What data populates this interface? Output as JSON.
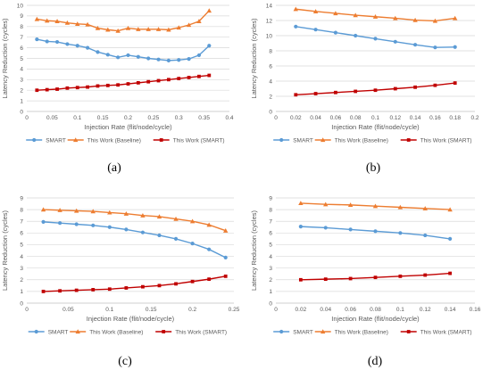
{
  "chart_data": [
    {
      "panel": "(a)",
      "type": "line",
      "xlabel": "Injection Rate (flit/node/cycle)",
      "ylabel": "Latency Reduction (cycles)",
      "xlim": [
        0,
        0.4
      ],
      "ylim": [
        0,
        10
      ],
      "xticks": [
        "0",
        "0.05",
        "0.1",
        "0.15",
        "0.2",
        "0.25",
        "0.3",
        "0.35",
        "0.4"
      ],
      "yticks": [
        "0",
        "1",
        "2",
        "3",
        "4",
        "5",
        "6",
        "7",
        "8",
        "9",
        "10"
      ],
      "grid": true,
      "legend_position": "bottom",
      "series": [
        {
          "name": "SMART",
          "color": "#5b9bd5",
          "marker": "circle",
          "x": [
            0.02,
            0.04,
            0.06,
            0.08,
            0.1,
            0.12,
            0.14,
            0.16,
            0.18,
            0.2,
            0.22,
            0.24,
            0.26,
            0.28,
            0.3,
            0.32,
            0.34,
            0.36
          ],
          "y": [
            6.8,
            6.6,
            6.55,
            6.35,
            6.2,
            6.0,
            5.6,
            5.35,
            5.1,
            5.3,
            5.15,
            5.0,
            4.9,
            4.8,
            4.85,
            4.95,
            5.3,
            6.2
          ]
        },
        {
          "name": "This Work (Baseline)",
          "color": "#ed7d31",
          "marker": "triangle",
          "x": [
            0.02,
            0.04,
            0.06,
            0.08,
            0.1,
            0.12,
            0.14,
            0.16,
            0.18,
            0.2,
            0.22,
            0.24,
            0.26,
            0.28,
            0.3,
            0.32,
            0.34,
            0.36
          ],
          "y": [
            8.7,
            8.55,
            8.5,
            8.35,
            8.25,
            8.2,
            7.85,
            7.7,
            7.6,
            7.85,
            7.75,
            7.75,
            7.75,
            7.7,
            7.9,
            8.15,
            8.5,
            9.5
          ]
        },
        {
          "name": "This Work (SMART)",
          "color": "#c00000",
          "marker": "square",
          "x": [
            0.02,
            0.04,
            0.06,
            0.08,
            0.1,
            0.12,
            0.14,
            0.16,
            0.18,
            0.2,
            0.22,
            0.24,
            0.26,
            0.28,
            0.3,
            0.32,
            0.34,
            0.36
          ],
          "y": [
            2.0,
            2.05,
            2.1,
            2.2,
            2.25,
            2.3,
            2.4,
            2.45,
            2.5,
            2.6,
            2.7,
            2.8,
            2.9,
            3.0,
            3.1,
            3.2,
            3.3,
            3.4
          ]
        }
      ]
    },
    {
      "panel": "(b)",
      "type": "line",
      "xlabel": "Injection Rate (flit/node/cycle)",
      "ylabel": "Latency Reduction (cycles)",
      "xlim": [
        0,
        0.2
      ],
      "ylim": [
        0,
        14
      ],
      "xticks": [
        "0",
        "0.02",
        "0.04",
        "0.06",
        "0.08",
        "0.1",
        "0.12",
        "0.14",
        "0.16",
        "0.18",
        "0.2"
      ],
      "yticks": [
        "0",
        "2",
        "4",
        "6",
        "8",
        "10",
        "12",
        "14"
      ],
      "grid": true,
      "legend_position": "bottom",
      "series": [
        {
          "name": "SMART",
          "color": "#5b9bd5",
          "marker": "circle",
          "x": [
            0.02,
            0.04,
            0.06,
            0.08,
            0.1,
            0.12,
            0.14,
            0.16,
            0.18
          ],
          "y": [
            11.2,
            10.8,
            10.4,
            10.0,
            9.6,
            9.2,
            8.8,
            8.45,
            8.5
          ]
        },
        {
          "name": "This Work (Baseline)",
          "color": "#ed7d31",
          "marker": "triangle",
          "x": [
            0.02,
            0.04,
            0.06,
            0.08,
            0.1,
            0.12,
            0.14,
            0.16,
            0.18
          ],
          "y": [
            13.5,
            13.2,
            12.95,
            12.7,
            12.5,
            12.3,
            12.05,
            11.95,
            12.3
          ]
        },
        {
          "name": "This Work (SMART)",
          "color": "#c00000",
          "marker": "square",
          "x": [
            0.02,
            0.04,
            0.06,
            0.08,
            0.1,
            0.12,
            0.14,
            0.16,
            0.18
          ],
          "y": [
            2.2,
            2.35,
            2.5,
            2.65,
            2.8,
            3.0,
            3.2,
            3.45,
            3.75
          ]
        }
      ]
    },
    {
      "panel": "(c)",
      "type": "line",
      "xlabel": "Injection Rate (flit/node/cycle)",
      "ylabel": "Latency Reduction (cycles)",
      "xlim": [
        0,
        0.25
      ],
      "ylim": [
        0,
        9
      ],
      "xticks": [
        "0",
        "0.05",
        "0.1",
        "0.15",
        "0.2",
        "0.25"
      ],
      "yticks": [
        "0",
        "1",
        "2",
        "3",
        "4",
        "5",
        "6",
        "7",
        "8",
        "9"
      ],
      "grid": true,
      "legend_position": "bottom",
      "series": [
        {
          "name": "SMART",
          "color": "#5b9bd5",
          "marker": "circle",
          "x": [
            0.02,
            0.04,
            0.06,
            0.08,
            0.1,
            0.12,
            0.14,
            0.16,
            0.18,
            0.2,
            0.22,
            0.24
          ],
          "y": [
            6.95,
            6.85,
            6.75,
            6.65,
            6.5,
            6.3,
            6.05,
            5.8,
            5.5,
            5.1,
            4.6,
            3.9
          ]
        },
        {
          "name": "This Work (Baseline)",
          "color": "#ed7d31",
          "marker": "triangle",
          "x": [
            0.02,
            0.04,
            0.06,
            0.08,
            0.1,
            0.12,
            0.14,
            0.16,
            0.18,
            0.2,
            0.22,
            0.24
          ],
          "y": [
            8.0,
            7.95,
            7.9,
            7.85,
            7.75,
            7.65,
            7.5,
            7.4,
            7.2,
            7.0,
            6.7,
            6.2
          ]
        },
        {
          "name": "This Work (SMART)",
          "color": "#c00000",
          "marker": "square",
          "x": [
            0.02,
            0.04,
            0.06,
            0.08,
            0.1,
            0.12,
            0.14,
            0.16,
            0.18,
            0.2,
            0.22,
            0.24
          ],
          "y": [
            1.0,
            1.05,
            1.1,
            1.15,
            1.2,
            1.3,
            1.4,
            1.5,
            1.65,
            1.85,
            2.05,
            2.3
          ]
        }
      ]
    },
    {
      "panel": "(d)",
      "type": "line",
      "xlabel": "Injection Rate (flit/node/cycle)",
      "ylabel": "Latency Reduction (cycles)",
      "xlim": [
        0,
        0.16
      ],
      "ylim": [
        0,
        9
      ],
      "xticks": [
        "0",
        "0.02",
        "0.04",
        "0.06",
        "0.08",
        "0.1",
        "0.12",
        "0.14",
        "0.16"
      ],
      "yticks": [
        "0",
        "1",
        "2",
        "3",
        "4",
        "5",
        "6",
        "7",
        "8",
        "9"
      ],
      "grid": true,
      "legend_position": "bottom",
      "series": [
        {
          "name": "SMART",
          "color": "#5b9bd5",
          "marker": "circle",
          "x": [
            0.02,
            0.04,
            0.06,
            0.08,
            0.1,
            0.12,
            0.14
          ],
          "y": [
            6.55,
            6.45,
            6.3,
            6.15,
            6.0,
            5.8,
            5.5
          ]
        },
        {
          "name": "This Work (Baseline)",
          "color": "#ed7d31",
          "marker": "triangle",
          "x": [
            0.02,
            0.04,
            0.06,
            0.08,
            0.1,
            0.12,
            0.14
          ],
          "y": [
            8.55,
            8.45,
            8.4,
            8.3,
            8.2,
            8.1,
            8.0
          ]
        },
        {
          "name": "This Work (SMART)",
          "color": "#c00000",
          "marker": "square",
          "x": [
            0.02,
            0.04,
            0.06,
            0.08,
            0.1,
            0.12,
            0.14
          ],
          "y": [
            2.0,
            2.05,
            2.1,
            2.2,
            2.3,
            2.4,
            2.55
          ]
        }
      ]
    }
  ]
}
